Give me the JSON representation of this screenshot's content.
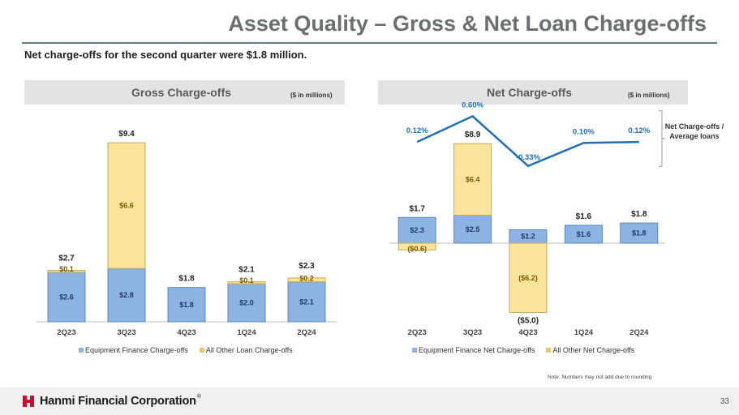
{
  "page": {
    "title": "Asset Quality – Gross & Net Loan Charge-offs",
    "subtitle": "Net charge-offs for the second quarter were $1.8 million.",
    "note": "Note: Numbers may not add due to rounding",
    "company": "Hanmi Financial Corporation",
    "trademark": "®",
    "page_number": "33"
  },
  "colors": {
    "equipment": "#8db3e2",
    "other": "#fbe49b",
    "line": "#1f6fb5",
    "header_bg": "#e3e3e3",
    "logo_red": "#c8102e"
  },
  "chart_data": [
    {
      "type": "bar",
      "stacked": true,
      "title": "Gross Charge-offs",
      "unit_label": "($ in millions)",
      "categories": [
        "2Q23",
        "3Q23",
        "4Q23",
        "1Q24",
        "2Q24"
      ],
      "series": [
        {
          "name": "Equipment Finance Charge-offs",
          "values": [
            2.6,
            2.8,
            1.8,
            2.0,
            2.1
          ],
          "labels": [
            "$2.6",
            "$2.8",
            "$1.8",
            "$2.0",
            "$2.1"
          ]
        },
        {
          "name": "All Other Loan Charge-offs",
          "values": [
            0.1,
            6.6,
            0.0,
            0.1,
            0.2
          ],
          "labels": [
            "$0.1",
            "$6.6",
            "",
            "$0.1",
            "$0.2"
          ]
        }
      ],
      "totals": [
        "$2.7",
        "$9.4",
        "$1.8",
        "$2.1",
        "$2.3"
      ],
      "total_values": [
        2.7,
        9.4,
        1.8,
        2.1,
        2.3
      ],
      "legend_position": "bottom",
      "grid": false
    },
    {
      "type": "bar",
      "stacked": true,
      "title": "Net Charge-offs",
      "unit_label": "($ in millions)",
      "categories": [
        "2Q23",
        "3Q23",
        "4Q23",
        "1Q24",
        "2Q24"
      ],
      "series": [
        {
          "name": "Equipment Finance Net Charge-offs",
          "values": [
            2.3,
            2.5,
            1.2,
            1.6,
            1.8
          ],
          "labels": [
            "$2.3",
            "$2.5",
            "$1.2",
            "$1.6",
            "$1.8"
          ]
        },
        {
          "name": "All Other Net Charge-offs",
          "values": [
            -0.6,
            6.4,
            -6.2,
            0.0,
            0.0
          ],
          "labels": [
            "($0.6)",
            "$6.4",
            "($6.2)",
            "",
            ""
          ]
        }
      ],
      "totals": [
        "$1.7",
        "$8.9",
        "($5.0)",
        "$1.6",
        "$1.8"
      ],
      "total_values": [
        1.7,
        8.9,
        -5.0,
        1.6,
        1.8
      ],
      "ratio_series": {
        "name": "Net Charge-offs / Average loans",
        "values": [
          0.12,
          0.6,
          -0.33,
          0.1,
          0.12
        ],
        "labels": [
          "0.12%",
          "0.60%",
          "-0.33%",
          "0.10%",
          "0.12%"
        ]
      },
      "ratio_label": "Net Charge-offs / Average loans",
      "legend_position": "bottom",
      "grid": false
    }
  ]
}
